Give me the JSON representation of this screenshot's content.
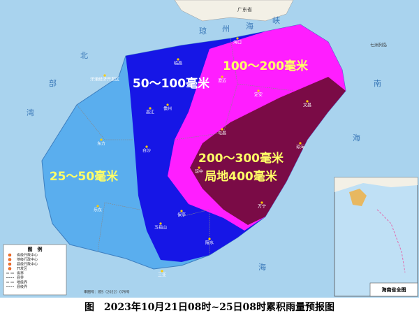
{
  "caption": "图　2023年10月21日08时~25日08时累积雨量预报图",
  "zones": [
    "25～50毫米",
    "50～100毫米",
    "100～200毫米",
    "200～300毫米",
    "局地400毫米"
  ],
  "seas": {
    "beibu_1": "北",
    "beibu_2": "部",
    "beibu_3": "湾",
    "qiongzhou": [
      "琼",
      "州",
      "海",
      "峡"
    ],
    "nanhai_1": "南",
    "nanhai_2": "海",
    "nanhai_3": "海",
    "guangdong": "广东省",
    "qizhou": "七洲列岛"
  },
  "cities": [
    "海口",
    "文昌",
    "琼海",
    "万宁",
    "陵水",
    "三亚",
    "乐东",
    "东方",
    "昌江",
    "儋州",
    "临高",
    "澄迈",
    "定安",
    "屯昌",
    "琼中",
    "五指山",
    "白沙",
    "保亭",
    "洋浦经济开发区"
  ],
  "legend": {
    "title": "图　例",
    "items": [
      "省级行政中心",
      "地级行政中心",
      "县级行政中心",
      "开发区",
      "省界",
      "县界",
      "地级界",
      "县级界"
    ]
  },
  "inset_title": "海南省全图",
  "approval": "审图号：琼S（2022）076号"
}
